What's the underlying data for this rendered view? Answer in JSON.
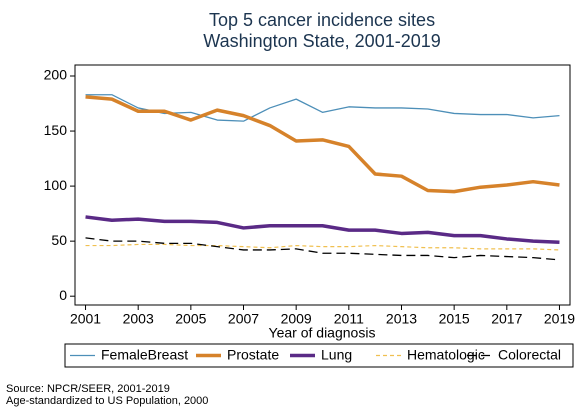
{
  "chart_data": {
    "type": "line",
    "title": "Top 5 cancer incidence sites",
    "subtitle": "Washington State, 2001-2019",
    "x_label": "Year of diagnosis",
    "x": [
      2001,
      2002,
      2003,
      2004,
      2005,
      2006,
      2007,
      2008,
      2009,
      2010,
      2011,
      2012,
      2013,
      2014,
      2015,
      2016,
      2017,
      2018,
      2019
    ],
    "xlim": [
      2000.6,
      2019.4
    ],
    "xticks": [
      2001,
      2003,
      2005,
      2007,
      2009,
      2011,
      2013,
      2015,
      2017,
      2019
    ],
    "ylim": [
      -8,
      210
    ],
    "yticks": [
      0,
      50,
      100,
      150,
      200
    ],
    "series": [
      {
        "name": "FemaleBreast",
        "color": "#4d8fb8",
        "values": [
          183,
          183,
          171,
          166,
          167,
          160,
          159,
          171,
          179,
          167,
          172,
          171,
          171,
          170,
          166,
          165,
          165,
          162,
          164
        ]
      },
      {
        "name": "Prostate",
        "color": "#d6822a",
        "values": [
          181,
          179,
          168,
          168,
          160,
          169,
          164,
          155,
          141,
          142,
          136,
          111,
          109,
          96,
          95,
          99,
          101,
          104,
          101
        ]
      },
      {
        "name": "Lung",
        "color": "#5a2a86",
        "values": [
          72,
          69,
          70,
          68,
          68,
          67,
          62,
          64,
          64,
          64,
          60,
          60,
          57,
          58,
          55,
          55,
          52,
          50,
          49
        ]
      },
      {
        "name": "Hematologic",
        "color": "#f0c050",
        "values": [
          46,
          46,
          47,
          47,
          46,
          46,
          45,
          44,
          46,
          45,
          45,
          46,
          45,
          44,
          44,
          43,
          43,
          43,
          42
        ]
      },
      {
        "name": "Colorectal",
        "color": "#000000",
        "values": [
          53,
          50,
          50,
          48,
          48,
          45,
          42,
          42,
          43,
          39,
          39,
          38,
          37,
          37,
          35,
          37,
          36,
          35,
          33
        ]
      }
    ],
    "notes": [
      "Source: NPCR/SEER, 2001-2019",
      "Age-standardized to US Population, 2000"
    ]
  }
}
